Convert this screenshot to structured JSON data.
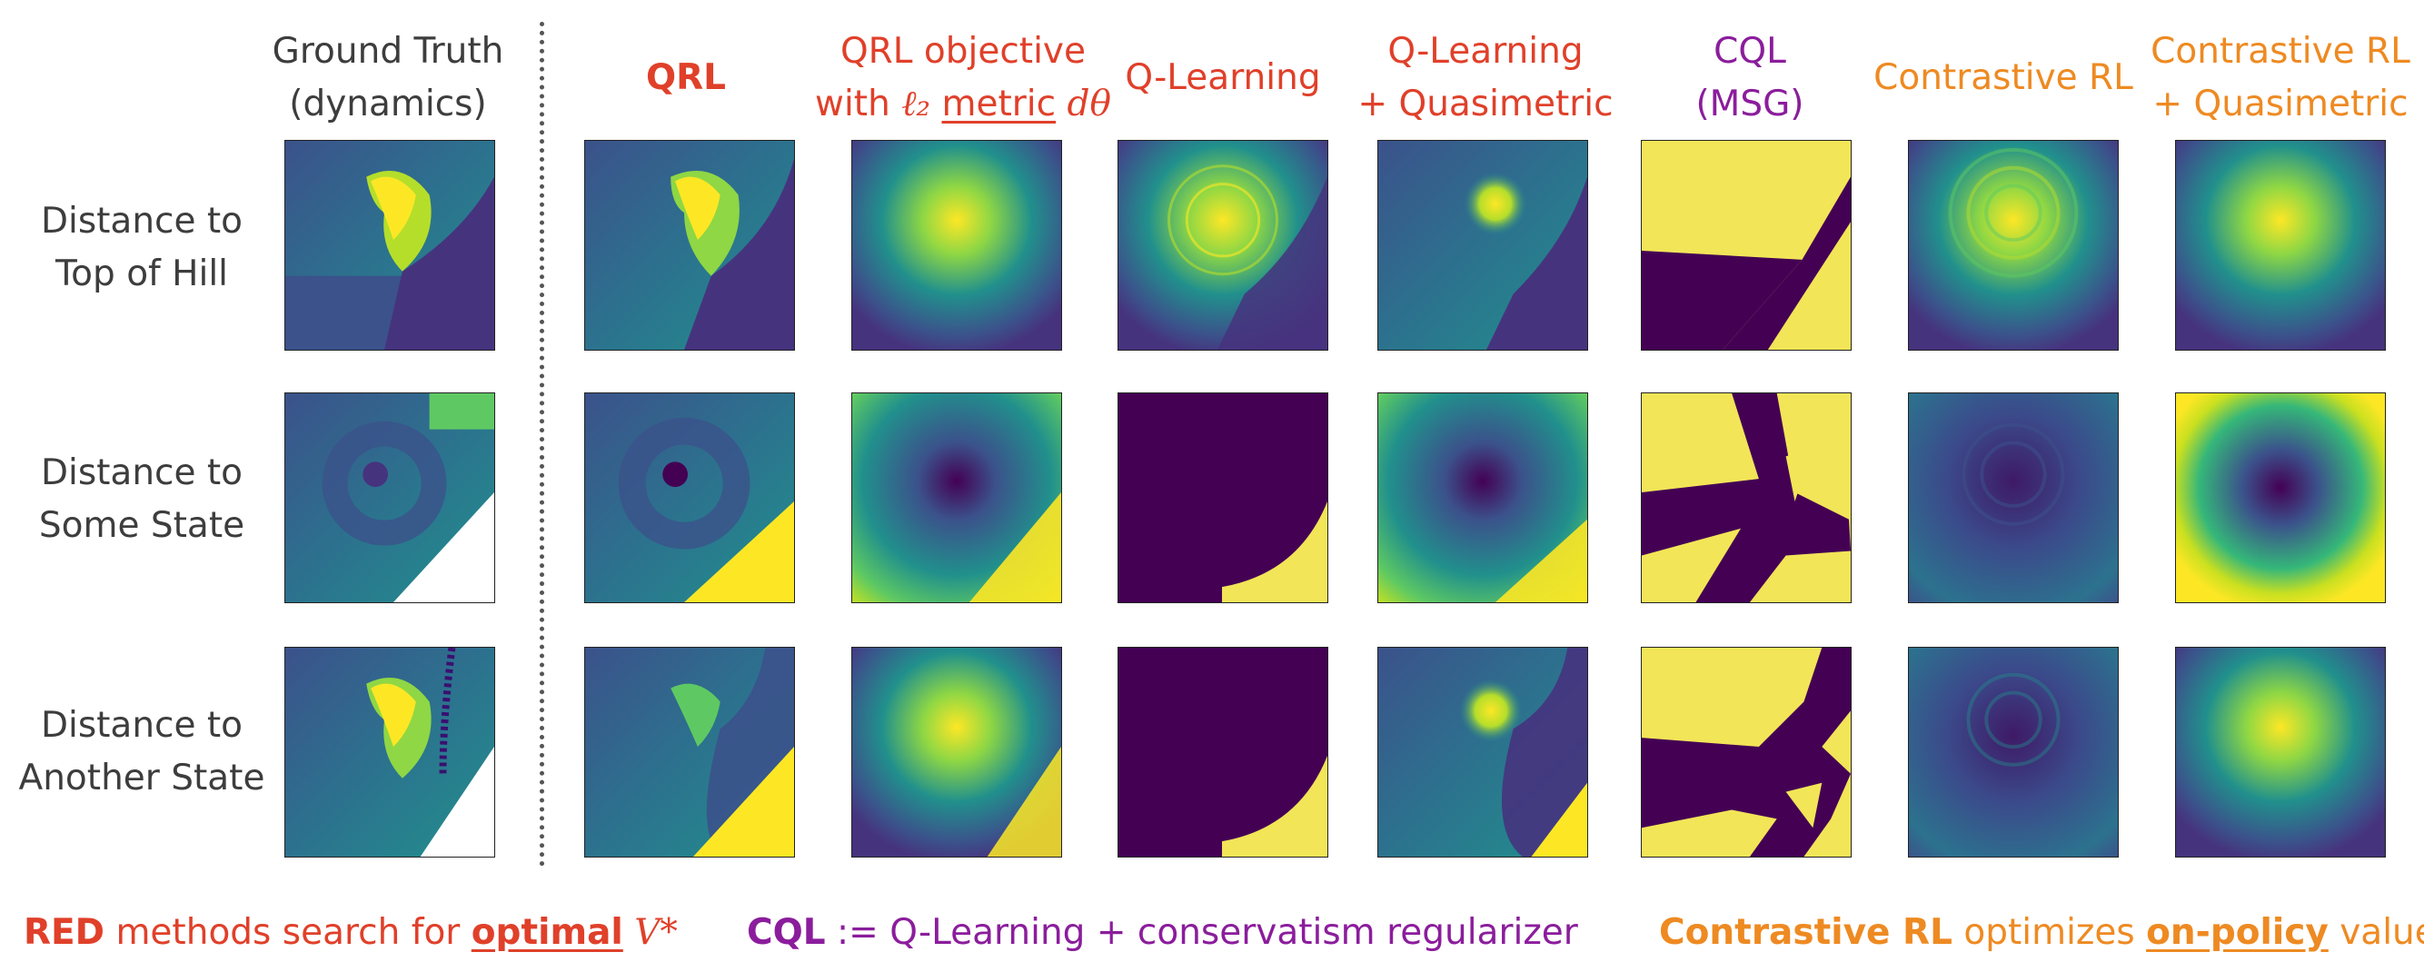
{
  "headers": [
    {
      "line1": "Ground Truth",
      "line2": "(dynamics)"
    },
    {
      "line1": "QRL"
    },
    {
      "line1": "QRL objective",
      "line2_pre": "with ",
      "line2_math": "ℓ₂",
      "line2_link": "metric",
      "line2_math2": "dθ"
    },
    {
      "line1": "Q-Learning"
    },
    {
      "line1": "Q-Learning",
      "line2": "+ Quasimetric"
    },
    {
      "line1": "CQL",
      "line2": "(MSG)"
    },
    {
      "line1": "Contrastive RL"
    },
    {
      "line1": "Contrastive RL",
      "line2": "+ Quasimetric"
    }
  ],
  "rows": [
    {
      "line1": "Distance to",
      "line2": "Top of Hill"
    },
    {
      "line1": "Distance to",
      "line2": "Some State"
    },
    {
      "line1": "Distance to",
      "line2": "Another State"
    }
  ],
  "footer": {
    "red_bold": "RED",
    "red_text": " methods search for ",
    "red_underlined": "optimal",
    "red_math": "V*",
    "purple_bold": "CQL",
    "purple_text": " := Q-Learning + conservatism regularizer",
    "orange_bold": "Contrastive RL",
    "orange_text": " optimizes ",
    "orange_underlined": "on-policy",
    "orange_end": " value"
  },
  "colors": {
    "red": "#e0402a",
    "purple": "#8b1d9c",
    "orange": "#ee8a22",
    "gray": "#3d3d3d",
    "viridis_dark": "#440154",
    "viridis_blue": "#3b528b",
    "viridis_teal": "#21908c",
    "viridis_green": "#5ec962",
    "viridis_yellow": "#fde725"
  }
}
